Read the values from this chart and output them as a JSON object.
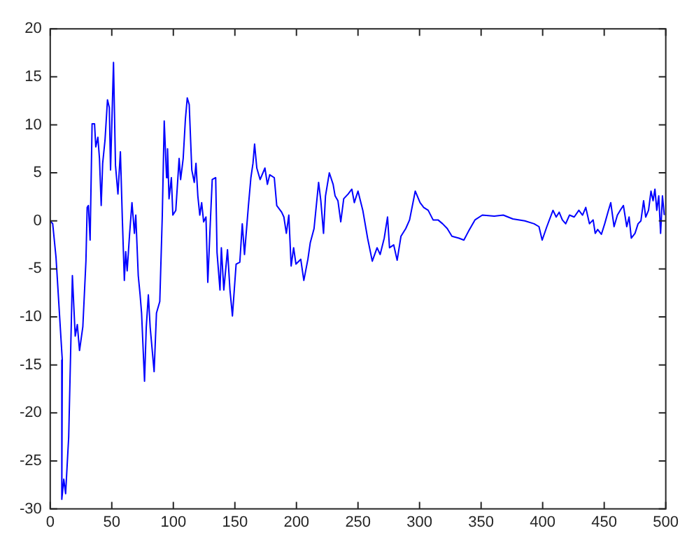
{
  "chart_data": {
    "type": "line",
    "color": "#0000ff",
    "x": [
      0,
      2,
      4.7,
      9.8,
      9.4,
      11,
      12.5,
      15,
      18,
      20.3,
      22,
      23.8,
      26.5,
      29,
      30,
      31,
      32.4,
      34,
      36,
      37,
      38.7,
      40,
      41.4,
      42.6,
      44.5,
      46.5,
      48,
      49,
      51.4,
      53,
      55,
      57,
      58.6,
      60.2,
      61.3,
      62.5,
      64.5,
      66.4,
      68.4,
      69.5,
      71.5,
      73,
      74.2,
      76.6,
      78,
      79.7,
      81.2,
      84.4,
      86.3,
      89,
      91,
      92.6,
      94.5,
      95.3,
      96.5,
      98.4,
      99.6,
      102,
      104.7,
      105.9,
      108,
      109.8,
      111.3,
      112.9,
      115,
      117,
      118.4,
      119.9,
      121.5,
      123,
      124.6,
      126.5,
      128,
      130,
      131.6,
      134.4,
      135.5,
      137.9,
      139,
      141,
      144,
      146,
      148,
      151,
      154,
      156,
      157.8,
      161,
      163,
      164.7,
      166,
      167.8,
      170.5,
      174.4,
      176.4,
      178.3,
      182,
      184,
      188,
      189.8,
      191.8,
      193.8,
      195.7,
      197.7,
      199.6,
      203.5,
      206,
      209.3,
      211.2,
      214.3,
      218,
      219.8,
      222,
      223.6,
      226.7,
      229.8,
      231.4,
      233.7,
      236,
      238.4,
      242,
      245,
      247,
      250,
      253.9,
      257.8,
      261.6,
      265.5,
      268,
      271.3,
      274,
      275.6,
      279,
      281.8,
      284.9,
      288.8,
      291.9,
      296.5,
      300.4,
      303.4,
      307,
      311,
      315,
      318.7,
      322.5,
      326.3,
      332,
      336,
      339.7,
      345,
      351,
      360.7,
      368,
      375.8,
      385.5,
      393,
      397,
      399.6,
      403.4,
      408.4,
      411,
      413.4,
      416,
      418.7,
      421.8,
      425.6,
      429.4,
      432.4,
      435,
      438,
      441,
      442.7,
      444.7,
      447.7,
      450.4,
      453,
      455.3,
      458,
      460.7,
      463,
      465.6,
      468.3,
      470.2,
      472,
      475,
      477.5,
      479.8,
      482,
      483.7,
      486,
      488,
      489.7,
      491.2,
      492.7,
      494.3,
      495.8,
      497.3,
      498.8
    ],
    "values": [
      0,
      -0.3,
      -3.8,
      -14.5,
      -29,
      -26.9,
      -28.4,
      -22.5,
      -5.7,
      -12,
      -10.8,
      -13.5,
      -11,
      -4.2,
      1.4,
      1.6,
      -2,
      10.1,
      10.1,
      7.7,
      8.7,
      6.5,
      1.6,
      6,
      8.4,
      12.6,
      11.8,
      5.3,
      16.5,
      5.8,
      2.8,
      7.2,
      0.1,
      -6.2,
      -3.2,
      -5.2,
      -1.3,
      1.9,
      -1.3,
      0.6,
      -5.7,
      -7.7,
      -9.6,
      -16.7,
      -11.1,
      -7.7,
      -11.1,
      -15.7,
      -9.6,
      -8.4,
      0.4,
      10.4,
      4.5,
      7.5,
      2.3,
      4.5,
      0.6,
      1.1,
      6.5,
      4.3,
      6.5,
      10.6,
      12.8,
      12.1,
      5.3,
      4,
      6,
      2.6,
      0.6,
      1.9,
      -0.1,
      0.4,
      -6.4,
      -0.3,
      4.3,
      4.5,
      -3.3,
      -7.2,
      -2.8,
      -7.2,
      -3,
      -7.2,
      -9.9,
      -4.5,
      -4.3,
      -0.3,
      -3.5,
      1.6,
      4.5,
      6,
      8,
      5.5,
      4.3,
      5.5,
      3.8,
      4.8,
      4.5,
      1.6,
      0.9,
      0.4,
      -1.3,
      0.6,
      -4.7,
      -2.8,
      -4.5,
      -4,
      -6.2,
      -4,
      -2.3,
      -0.8,
      4,
      2.1,
      -1.3,
      2.6,
      5,
      3.8,
      2.6,
      2.1,
      -0.1,
      2.3,
      2.8,
      3.3,
      1.9,
      3.1,
      1.1,
      -1.8,
      -4.2,
      -2.8,
      -3.5,
      -1.8,
      0.4,
      -2.8,
      -2.5,
      -4.1,
      -1.6,
      -0.8,
      0.1,
      3.1,
      1.9,
      1.4,
      1.1,
      0.1,
      0.1,
      -0.3,
      -0.8,
      -1.6,
      -1.8,
      -2,
      -1.1,
      0.1,
      0.6,
      0.5,
      0.6,
      0.2,
      0,
      -0.3,
      -0.6,
      -2,
      -0.6,
      1.1,
      0.4,
      0.9,
      0.1,
      -0.3,
      0.6,
      0.4,
      1.1,
      0.6,
      1.4,
      -0.3,
      0.1,
      -1.3,
      -0.9,
      -1.4,
      -0.3,
      0.9,
      1.9,
      -0.6,
      0.6,
      1.1,
      1.6,
      -0.6,
      0.4,
      -1.8,
      -1.3,
      -0.3,
      0,
      2.1,
      0.4,
      1.1,
      3.1,
      2.1,
      3.3,
      1.1,
      2.6,
      -1.3,
      2.6,
      0.6
    ],
    "xlim": [
      0,
      500
    ],
    "xticks": [
      0,
      50,
      100,
      150,
      200,
      250,
      300,
      350,
      400,
      450,
      500
    ],
    "ylim": [
      -30,
      20
    ],
    "yticks": [
      -30,
      -25,
      -20,
      -15,
      -10,
      -5,
      0,
      5,
      10,
      15,
      20
    ],
    "marker": "none",
    "line_style": "solid"
  }
}
